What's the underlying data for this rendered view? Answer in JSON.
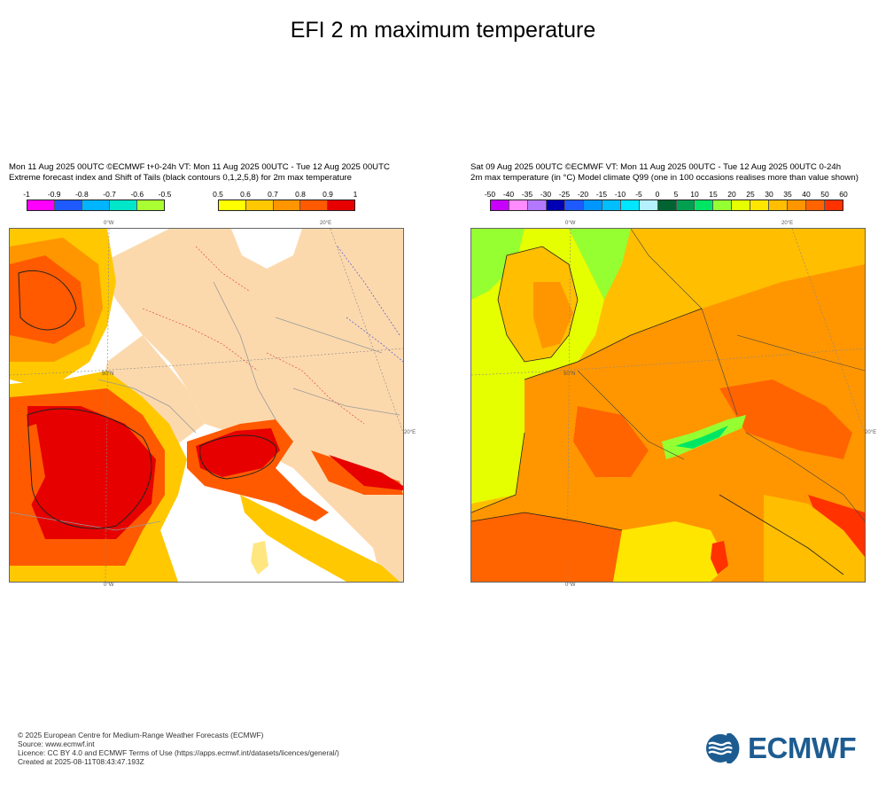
{
  "title": "EFI 2 m maximum temperature",
  "left": {
    "header_line1": "Mon 11 Aug 2025 00UTC ©ECMWF t+0-24h  VT: Mon 11 Aug 2025 00UTC - Tue 12 Aug 2025 00UTC",
    "header_line2": "Extreme forecast index and Shift of Tails (black contours 0,1,2,5,8) for 2m max temperature",
    "legend_neg": {
      "labels": [
        "-1",
        "-0.9",
        "-0.8",
        "-0.7",
        "-0.6",
        "-0.5"
      ],
      "colors": [
        "#ff00ff",
        "#1e5aff",
        "#00b4ff",
        "#00e6c8",
        "#aaff32"
      ]
    },
    "legend_pos": {
      "labels": [
        "0.5",
        "0.6",
        "0.7",
        "0.8",
        "0.9",
        "1"
      ],
      "colors": [
        "#ffff00",
        "#ffc800",
        "#ff9600",
        "#ff5a00",
        "#e60000"
      ]
    },
    "map_labels": {
      "top_lon_left": "0°W",
      "top_lon_right": "20°E",
      "lat": "50°N",
      "right_lon": "20°E",
      "bottom_lon": "0°W"
    }
  },
  "right": {
    "header_line1": "Sat 09 Aug 2025 00UTC ©ECMWF VT: Mon 11 Aug 2025 00UTC - Tue 12 Aug 2025 00UTC   0-24h",
    "header_line2": "2m max temperature (in °C)  Model climate Q99 (one in 100 occasions realises more than value shown)",
    "legend": {
      "labels": [
        "-50",
        "-40",
        "-35",
        "-30",
        "-25",
        "-20",
        "-15",
        "-10",
        "-5",
        "0",
        "5",
        "10",
        "15",
        "20",
        "25",
        "30",
        "35",
        "40",
        "50",
        "60"
      ],
      "colors": [
        "#c800ff",
        "#ff8cff",
        "#b478ff",
        "#0000b4",
        "#1e5aff",
        "#0096ff",
        "#00beff",
        "#00e6ff",
        "#b4f0ff",
        "#006432",
        "#00a050",
        "#00e664",
        "#96ff32",
        "#e6ff00",
        "#ffe600",
        "#ffbe00",
        "#ff9600",
        "#ff6400",
        "#ff3200"
      ]
    },
    "map_labels": {
      "top_lon_left": "0°W",
      "top_lon_right": "20°E",
      "lat": "50°N",
      "right_lon": "20°E",
      "bottom_lon": "0°W"
    }
  },
  "footer": {
    "line1": "© 2025 European Centre for Medium-Range Weather Forecasts (ECMWF)",
    "line2": "Source: www.ecmwf.int",
    "line3": "Licence: CC BY 4.0 and ECMWF Terms of Use (https://apps.ecmwf.int/datasets/licences/general/)",
    "line4": "Created at 2025-08-11T08:43:47.193Z"
  },
  "logo": {
    "text": "ECMWF",
    "color": "#1d5c91"
  }
}
